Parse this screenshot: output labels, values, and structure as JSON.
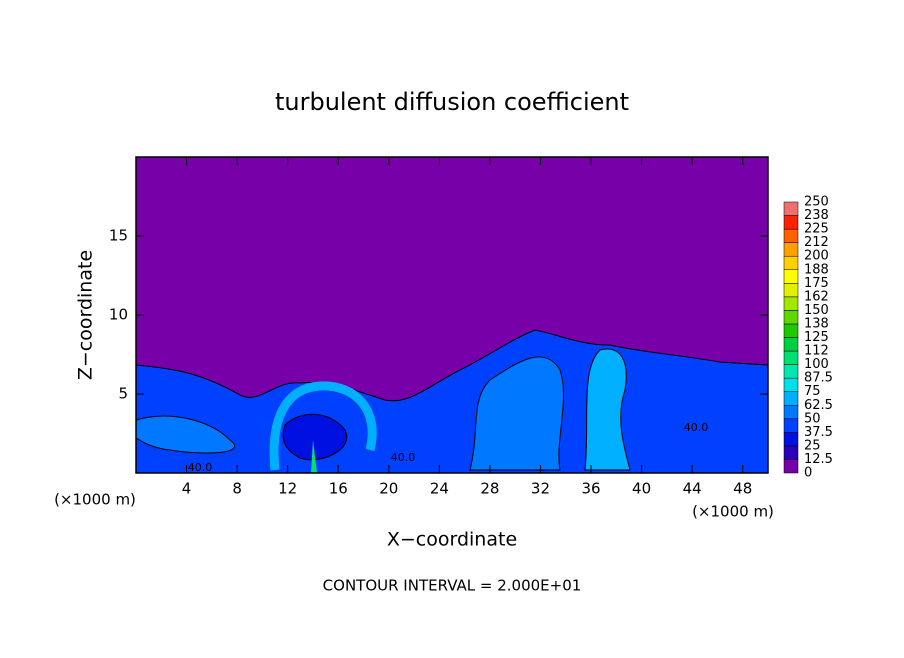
{
  "chart_data": {
    "type": "contour",
    "title": "turbulent diffusion coefficient",
    "xlabel": "X−coordinate",
    "ylabel": "Z−coordinate",
    "x_unit": "(×1000 m)",
    "x_unit_right": "(×1000 m)",
    "annotation": "CONTOUR INTERVAL = 2.000E+01",
    "xlim": [
      0,
      50
    ],
    "xticks": [
      4,
      8,
      12,
      16,
      20,
      24,
      28,
      32,
      36,
      40,
      44,
      48
    ],
    "ylim": [
      0,
      20
    ],
    "yticks": [
      5,
      10,
      15
    ],
    "contour_labels": [
      "40.0",
      "40.0",
      "40.0"
    ],
    "levels": [
      0,
      12.5,
      25,
      37.5,
      50,
      62.5,
      75,
      87.5,
      100,
      112,
      125,
      138,
      150,
      162,
      175,
      188,
      200,
      212,
      225,
      238,
      250
    ],
    "colors": [
      "#7800a8",
      "#2a00b8",
      "#0010e0",
      "#0040ff",
      "#0078ff",
      "#00b0ff",
      "#00e0e8",
      "#00e8b0",
      "#00e070",
      "#00d040",
      "#20c800",
      "#60d800",
      "#a0e800",
      "#e0f000",
      "#ffff00",
      "#ffd000",
      "#ffa000",
      "#ff6000",
      "#ff2000",
      "#f07070"
    ]
  }
}
